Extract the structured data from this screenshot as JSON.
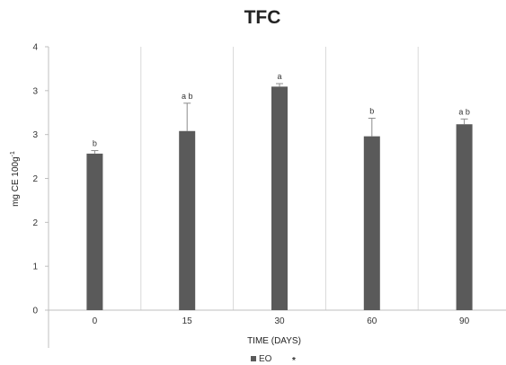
{
  "chart_data": {
    "type": "bar",
    "title": "TFC",
    "xlabel": "TIME (DAYS)",
    "ylabel_main": "mg CE 100g",
    "ylabel_sup": "-1",
    "categories": [
      "0",
      "15",
      "30",
      "60",
      "90"
    ],
    "y_tick_labels": [
      "0",
      "1",
      "2",
      "2",
      "3",
      "3",
      "4"
    ],
    "ylim": [
      0,
      3.5
    ],
    "grid": "vertical-category-separators",
    "legend_position": "bottom-center",
    "series": [
      {
        "name": "EO",
        "color": "#5a5a5a",
        "values": [
          2.08,
          2.38,
          2.97,
          2.31,
          2.47
        ],
        "error_up": [
          0.04,
          0.37,
          0.04,
          0.24,
          0.07
        ],
        "significance": [
          "b",
          "a b",
          "a",
          "b",
          "a b"
        ]
      }
    ],
    "legend": [
      {
        "label": "EO",
        "marker": "square",
        "color": "#5a5a5a"
      },
      {
        "label": "",
        "marker": "asterisk",
        "color": "#333333"
      }
    ]
  }
}
